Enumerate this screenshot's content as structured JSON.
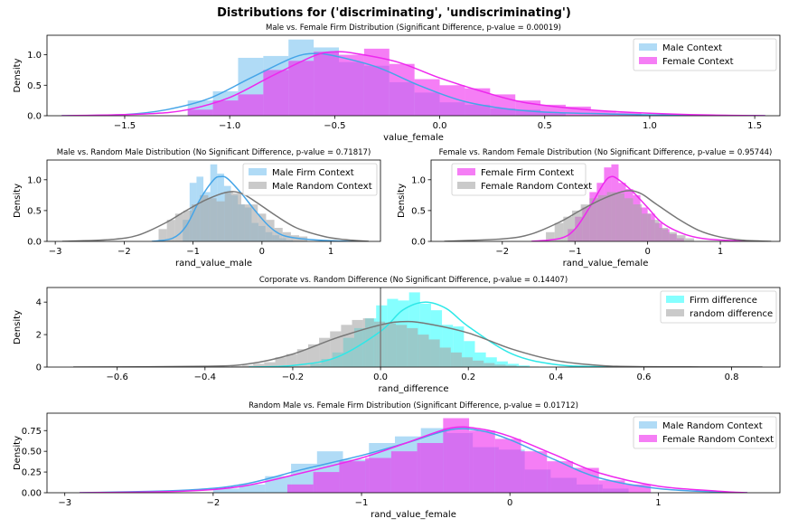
{
  "figure": {
    "suptitle": "Distributions for ('discriminating', 'undiscriminating')"
  },
  "chart_data": [
    {
      "id": "p1",
      "type": "histogram+kde",
      "title": "Male vs. Female Firm Distribution (Significant Difference, p-value = 0.00019)",
      "xlabel": "value_female",
      "ylabel": "Density",
      "xlim": [
        -1.87,
        1.62
      ],
      "ylim": [
        0,
        1.32
      ],
      "xticks": [
        -1.5,
        -1.0,
        -0.5,
        0.0,
        0.5,
        1.0,
        1.5
      ],
      "xtick_labels": [
        "−1.5",
        "−1.0",
        "−0.5",
        "0.0",
        "0.5",
        "1.0",
        "1.5"
      ],
      "yticks": [
        0,
        0.5,
        1.0
      ],
      "ytick_labels": [
        "0.0",
        "0.5",
        "1.0"
      ],
      "legend": "top-right",
      "series": [
        {
          "name": "Male Context",
          "color": "#45a5e8",
          "fill": "#7cc3f0",
          "bins": {
            "start": -1.2,
            "width": 0.12,
            "heights": [
              0.25,
              0.4,
              0.95,
              0.98,
              1.25,
              1.12,
              0.88,
              0.82,
              0.55,
              0.38,
              0.22,
              0.18,
              0.12,
              0.1,
              0.05
            ]
          },
          "kde": {
            "x": [
              -1.8,
              -1.5,
              -1.3,
              -1.1,
              -0.9,
              -0.7,
              -0.6,
              -0.5,
              -0.3,
              -0.1,
              0.1,
              0.3,
              0.5,
              0.8,
              1.1,
              1.55
            ],
            "y": [
              0.0,
              0.02,
              0.1,
              0.28,
              0.62,
              0.95,
              1.02,
              0.98,
              0.8,
              0.5,
              0.25,
              0.12,
              0.06,
              0.03,
              0.01,
              0.0
            ]
          }
        },
        {
          "name": "Female Context",
          "color": "#ee28ee",
          "fill": "#ee28ee",
          "bins": {
            "start": -1.2,
            "width": 0.12,
            "heights": [
              0.1,
              0.25,
              0.35,
              0.75,
              0.9,
              1.05,
              1.0,
              1.1,
              0.85,
              0.6,
              0.5,
              0.45,
              0.35,
              0.25,
              0.18,
              0.15,
              0.08,
              0.05
            ]
          },
          "kde": {
            "x": [
              -1.8,
              -1.4,
              -1.2,
              -1.0,
              -0.8,
              -0.6,
              -0.5,
              -0.4,
              -0.2,
              0.0,
              0.2,
              0.4,
              0.7,
              1.0,
              1.3,
              1.55
            ],
            "y": [
              0.0,
              0.03,
              0.1,
              0.3,
              0.65,
              0.98,
              1.05,
              1.02,
              0.88,
              0.62,
              0.4,
              0.22,
              0.1,
              0.04,
              0.01,
              0.0
            ]
          }
        }
      ]
    },
    {
      "id": "p2",
      "type": "histogram+kde",
      "title": "Male vs. Random Male Distribution (No Significant Difference, p-value = 0.71817)",
      "xlabel": "rand_value_male",
      "ylabel": "Density",
      "xlim": [
        -3.12,
        1.72
      ],
      "ylim": [
        0,
        1.32
      ],
      "xticks": [
        -3,
        -2,
        -1,
        0,
        1
      ],
      "xtick_labels": [
        "−3",
        "−2",
        "−1",
        "0",
        "1"
      ],
      "yticks": [
        0,
        0.5,
        1.0
      ],
      "ytick_labels": [
        "0.0",
        "0.5",
        "1.0"
      ],
      "legend": "top-right",
      "series": [
        {
          "name": "Male Firm Context",
          "color": "#45a5e8",
          "fill": "#7cc3f0",
          "bins": {
            "start": -1.15,
            "width": 0.1,
            "heights": [
              0.35,
              0.95,
              1.05,
              0.8,
              1.25,
              1.1,
              0.9,
              0.75,
              0.6,
              0.55,
              0.3,
              0.25,
              0.15,
              0.1,
              0.05,
              0.02
            ]
          },
          "kde": {
            "x": [
              -1.6,
              -1.3,
              -1.1,
              -0.9,
              -0.7,
              -0.6,
              -0.5,
              -0.3,
              -0.1,
              0.1,
              0.3,
              0.6,
              1.0,
              1.5
            ],
            "y": [
              0.0,
              0.05,
              0.25,
              0.68,
              1.0,
              1.05,
              1.02,
              0.78,
              0.5,
              0.25,
              0.1,
              0.04,
              0.01,
              0.0
            ]
          }
        },
        {
          "name": "Male Random Context",
          "color": "#777777",
          "fill": "#a6a6a6",
          "bins": {
            "start": -1.5,
            "width": 0.12,
            "heights": [
              0.2,
              0.35,
              0.45,
              0.5,
              0.6,
              0.75,
              0.7,
              0.65,
              0.8,
              0.78,
              0.6,
              0.6,
              0.45,
              0.35,
              0.22,
              0.15,
              0.1,
              0.08
            ]
          },
          "kde": {
            "x": [
              -2.9,
              -2.2,
              -1.8,
              -1.4,
              -1.1,
              -0.8,
              -0.5,
              -0.3,
              -0.1,
              0.2,
              0.5,
              0.9,
              1.2,
              1.55
            ],
            "y": [
              0.0,
              0.03,
              0.1,
              0.3,
              0.5,
              0.68,
              0.8,
              0.78,
              0.65,
              0.42,
              0.22,
              0.08,
              0.03,
              0.0
            ]
          }
        }
      ]
    },
    {
      "id": "p3",
      "type": "histogram+kde",
      "title": "Female vs. Random Female Distribution (No Significant Difference, p-value = 0.95744)",
      "xlabel": "rand_value_female",
      "ylabel": "Density",
      "xlim": [
        -2.98,
        1.82
      ],
      "ylim": [
        0,
        1.32
      ],
      "xticks": [
        -2,
        -1,
        0,
        1
      ],
      "xtick_labels": [
        "−2",
        "−1",
        "0",
        "1"
      ],
      "yticks": [
        0,
        0.5,
        1.0
      ],
      "ytick_labels": [
        "0.0",
        "0.5",
        "1.0"
      ],
      "legend": "top-left",
      "series": [
        {
          "name": "Female Firm Context",
          "color": "#ee28ee",
          "fill": "#ee28ee",
          "bins": {
            "start": -1.1,
            "width": 0.1,
            "heights": [
              0.2,
              0.4,
              0.55,
              0.8,
              0.95,
              1.2,
              1.25,
              0.95,
              0.85,
              0.75,
              0.55,
              0.45,
              0.3,
              0.2,
              0.12,
              0.05
            ]
          },
          "kde": {
            "x": [
              -1.6,
              -1.2,
              -1.0,
              -0.8,
              -0.6,
              -0.5,
              -0.4,
              -0.2,
              0.0,
              0.2,
              0.5,
              0.8,
              1.2,
              1.6
            ],
            "y": [
              0.0,
              0.05,
              0.2,
              0.55,
              0.95,
              1.05,
              1.0,
              0.8,
              0.55,
              0.3,
              0.12,
              0.04,
              0.01,
              0.0
            ]
          }
        },
        {
          "name": "Female Random Context",
          "color": "#777777",
          "fill": "#a6a6a6",
          "bins": {
            "start": -1.4,
            "width": 0.12,
            "heights": [
              0.15,
              0.3,
              0.4,
              0.5,
              0.6,
              0.7,
              0.75,
              0.8,
              0.78,
              0.7,
              0.6,
              0.45,
              0.35,
              0.22,
              0.15,
              0.1,
              0.05
            ]
          },
          "kde": {
            "x": [
              -2.8,
              -2.0,
              -1.6,
              -1.2,
              -0.9,
              -0.6,
              -0.3,
              -0.1,
              0.1,
              0.4,
              0.7,
              1.0,
              1.3,
              1.7
            ],
            "y": [
              0.0,
              0.04,
              0.12,
              0.32,
              0.52,
              0.7,
              0.82,
              0.78,
              0.62,
              0.38,
              0.18,
              0.07,
              0.02,
              0.0
            ]
          }
        }
      ]
    },
    {
      "id": "p4",
      "type": "histogram+kde",
      "title": "Corporate vs. Random Difference (No Significant Difference, p-value = 0.14407)",
      "xlabel": "rand_difference",
      "ylabel": "Density",
      "xlim": [
        -0.76,
        0.91
      ],
      "ylim": [
        0,
        4.9
      ],
      "xticks": [
        -0.6,
        -0.4,
        -0.2,
        0.0,
        0.2,
        0.4,
        0.6,
        0.8
      ],
      "xtick_labels": [
        "−0.6",
        "−0.4",
        "−0.2",
        "0.0",
        "0.2",
        "0.4",
        "0.6",
        "0.8"
      ],
      "yticks": [
        0,
        2,
        4
      ],
      "ytick_labels": [
        "0",
        "2",
        "4"
      ],
      "vline": 0,
      "legend": "top-right",
      "series": [
        {
          "name": "Firm difference",
          "color": "#2ee8e8",
          "fill": "#33ffff",
          "bins": {
            "start": -0.16,
            "width": 0.025,
            "heights": [
              0.2,
              0.5,
              0.9,
              1.8,
              2.4,
              3.0,
              3.8,
              4.2,
              4.1,
              4.6,
              3.9,
              3.5,
              2.6,
              2.5,
              1.6,
              0.9,
              0.6,
              0.35,
              0.2,
              0.1
            ]
          },
          "kde": {
            "x": [
              -0.3,
              -0.2,
              -0.1,
              0.0,
              0.05,
              0.1,
              0.15,
              0.2,
              0.3,
              0.4,
              0.5,
              0.6
            ],
            "y": [
              0.0,
              0.1,
              0.6,
              2.2,
              3.5,
              4.0,
              3.6,
              2.5,
              0.8,
              0.15,
              0.02,
              0.0
            ]
          }
        },
        {
          "name": "random difference",
          "color": "#777777",
          "fill": "#a6a6a6",
          "bins": {
            "start": -0.34,
            "width": 0.025,
            "heights": [
              0.05,
              0.1,
              0.2,
              0.3,
              0.6,
              0.8,
              1.1,
              1.4,
              1.8,
              2.2,
              2.6,
              2.9,
              3.0,
              2.8,
              2.7,
              2.6,
              2.4,
              2.0,
              1.7,
              1.2,
              0.9,
              0.6,
              0.4,
              0.25,
              0.15,
              0.1,
              0.05,
              0.03
            ]
          },
          "kde": {
            "x": [
              -0.7,
              -0.4,
              -0.3,
              -0.2,
              -0.1,
              0.0,
              0.05,
              0.1,
              0.2,
              0.3,
              0.4,
              0.5,
              0.6,
              0.87
            ],
            "y": [
              0.0,
              0.05,
              0.2,
              0.8,
              1.8,
              2.6,
              2.8,
              2.7,
              2.1,
              1.1,
              0.4,
              0.1,
              0.02,
              0.0
            ]
          }
        }
      ]
    },
    {
      "id": "p5",
      "type": "histogram+kde",
      "title": "Random Male vs. Female Firm Distribution (Significant Difference, p-value = 0.01712)",
      "xlabel": "rand_value_female",
      "ylabel": "Density",
      "xlim": [
        -3.12,
        1.82
      ],
      "ylim": [
        0,
        0.96
      ],
      "xticks": [
        -3,
        -2,
        -1,
        0,
        1
      ],
      "xtick_labels": [
        "−3",
        "−2",
        "−1",
        "0",
        "1"
      ],
      "yticks": [
        0,
        0.25,
        0.5,
        0.75
      ],
      "ytick_labels": [
        "0.00",
        "0.25",
        "0.50",
        "0.75"
      ],
      "legend": "top-right",
      "series": [
        {
          "name": "Male Random Context",
          "color": "#45a5e8",
          "fill": "#7cc3f0",
          "bins": {
            "start": -2.0,
            "width": 0.175,
            "heights": [
              0.05,
              0.1,
              0.2,
              0.35,
              0.5,
              0.4,
              0.6,
              0.68,
              0.78,
              0.72,
              0.55,
              0.52,
              0.28,
              0.18,
              0.1,
              0.05
            ]
          },
          "kde": {
            "x": [
              -2.9,
              -2.2,
              -1.8,
              -1.4,
              -1.0,
              -0.7,
              -0.4,
              -0.2,
              0.0,
              0.3,
              0.6,
              1.0,
              1.4,
              1.6
            ],
            "y": [
              0.0,
              0.03,
              0.1,
              0.28,
              0.45,
              0.6,
              0.76,
              0.75,
              0.64,
              0.4,
              0.18,
              0.05,
              0.01,
              0.0
            ]
          }
        },
        {
          "name": "Female Random Context",
          "color": "#ee28ee",
          "fill": "#ee28ee",
          "bins": {
            "start": -1.5,
            "width": 0.175,
            "heights": [
              0.1,
              0.25,
              0.38,
              0.42,
              0.5,
              0.6,
              0.9,
              0.75,
              0.65,
              0.5,
              0.38,
              0.3,
              0.15,
              0.1
            ]
          },
          "kde": {
            "x": [
              -2.9,
              -2.2,
              -1.8,
              -1.4,
              -1.0,
              -0.7,
              -0.4,
              -0.2,
              0.0,
              0.3,
              0.6,
              1.0,
              1.4,
              1.6
            ],
            "y": [
              0.0,
              0.02,
              0.08,
              0.24,
              0.42,
              0.6,
              0.78,
              0.77,
              0.68,
              0.46,
              0.24,
              0.08,
              0.02,
              0.0
            ]
          }
        }
      ]
    }
  ]
}
